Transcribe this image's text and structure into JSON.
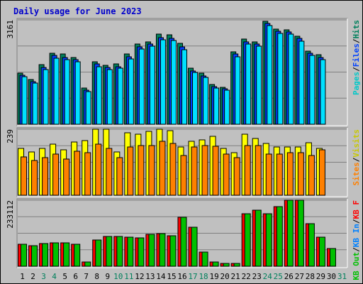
{
  "chart_data": {
    "type": "bar",
    "title": "Daily usage for June 2023",
    "colors": {
      "hits": "#00805c",
      "files": "#0040ff",
      "pages": "#00e0ff",
      "visits": "#ffff00",
      "sites": "#ff8000",
      "kb_in": "#0080ff",
      "kb_out": "#00c000",
      "kb_f": "#ff0000",
      "legend_hits": "#00805c",
      "legend_files": "#0040ff",
      "legend_pages": "#00c8c8",
      "legend_visits": "#c8c800",
      "legend_sites": "#ff8000",
      "legend_kb_in": "#0080ff",
      "legend_kb_out": "#00c000",
      "legend_kb_f": "#ff0000",
      "background": "#c0c0c0",
      "weekend_day_label": "#00805c",
      "weekday_day_label": "#000000",
      "title": "#0000cc"
    },
    "days": [
      "1",
      "2",
      "3",
      "4",
      "5",
      "6",
      "7",
      "8",
      "9",
      "10",
      "11",
      "12",
      "13",
      "14",
      "15",
      "16",
      "17",
      "18",
      "19",
      "20",
      "21",
      "22",
      "23",
      "24",
      "25",
      "26",
      "27",
      "28",
      "29",
      "30",
      "31"
    ],
    "weekend_days": [
      "3",
      "4",
      "10",
      "11",
      "17",
      "18",
      "24",
      "25",
      "31"
    ],
    "panels": [
      {
        "id": "hits_files_pages",
        "ymax_label": "3161",
        "ymax": 3161,
        "legend": [
          {
            "label": "Hits",
            "color_key": "legend_hits"
          },
          {
            "label": "Files",
            "color_key": "legend_files"
          },
          {
            "label": "Pages",
            "color_key": "legend_pages"
          }
        ],
        "separators": [
          "/",
          "/"
        ],
        "series": [
          {
            "name": "Hits",
            "color_key": "hits",
            "values": [
              1550,
              1350,
              1800,
              2150,
              2120,
              2020,
              1100,
              1900,
              1790,
              1830,
              2120,
              2430,
              2500,
              2730,
              2700,
              2450,
              1690,
              1540,
              1200,
              1110,
              2200,
              2570,
              2500,
              3120,
              2880,
              2860,
              2670,
              2220,
              2100,
              0,
              0
            ]
          },
          {
            "name": "Files",
            "color_key": "files",
            "values": [
              1480,
              1290,
              1720,
              2080,
              2030,
              1950,
              1040,
              1820,
              1710,
              1750,
              2040,
              2350,
              2430,
              2630,
              2600,
              2350,
              1620,
              1470,
              1150,
              1070,
              2130,
              2500,
              2430,
              3050,
              2820,
              2790,
              2600,
              2150,
              2020,
              0,
              0
            ]
          },
          {
            "name": "Pages",
            "color_key": "pages",
            "values": [
              1440,
              1250,
              1660,
              2010,
              1960,
              1890,
              980,
              1750,
              1650,
              1690,
              1980,
              2280,
              2360,
              2560,
              2540,
              2260,
              1560,
              1420,
              1090,
              1030,
              2050,
              2420,
              2360,
              2990,
              2760,
              2730,
              2520,
              2090,
              1950,
              0,
              0
            ]
          }
        ]
      },
      {
        "id": "visits_sites",
        "ymax_label": "239",
        "ymax": 239,
        "legend": [
          {
            "label": "Visits",
            "color_key": "legend_visits"
          },
          {
            "label": "Sites",
            "color_key": "legend_sites"
          }
        ],
        "separators": [
          "/"
        ],
        "series": [
          {
            "name": "Visits",
            "color_key": "visits",
            "values": [
              170,
              157,
              170,
              185,
              165,
              193,
              197,
              240,
              238,
              157,
              225,
              220,
              232,
              238,
              235,
              175,
              195,
              200,
              213,
              170,
              153,
              220,
              205,
              188,
              176,
              175,
              175,
              190,
              170,
              0,
              0
            ]
          },
          {
            "name": "Sites",
            "color_key": "sites",
            "values": [
              140,
              125,
              135,
              150,
              130,
              160,
              153,
              185,
              170,
              135,
              175,
              180,
              180,
              195,
              188,
              144,
              175,
              180,
              177,
              150,
              135,
              180,
              180,
              150,
              150,
              155,
              155,
              145,
              165,
              0,
              0
            ]
          }
        ]
      },
      {
        "id": "kbf_kbin_kbout",
        "ymax_label": "233112",
        "ymax": 233112,
        "legend": [
          {
            "label": "KB F",
            "color_key": "legend_kb_f"
          },
          {
            "label": "KB In",
            "color_key": "legend_kb_in"
          },
          {
            "label": "KB Out",
            "color_key": "legend_kb_out"
          }
        ],
        "separators": [
          "/",
          "/"
        ],
        "series": [
          {
            "name": "KB F",
            "color_key": "kb_f",
            "values": [
              78000,
              73000,
              80000,
              83000,
              83000,
              78000,
              15000,
              92000,
              105000,
              105000,
              103000,
              100000,
              113000,
              116000,
              109000,
              173000,
              138000,
              50000,
              15000,
              10000,
              9000,
              186000,
              198000,
              186000,
              210000,
              232000,
              232000,
              150000,
              103000,
              62000,
              0
            ]
          },
          {
            "name": "KB Out",
            "color_key": "kb_out",
            "values": [
              78000,
              73000,
              80000,
              83000,
              83000,
              78000,
              15000,
              92000,
              105000,
              105000,
              103000,
              100000,
              113000,
              116000,
              109000,
              173000,
              138000,
              50000,
              15000,
              10000,
              9000,
              186000,
              198000,
              186000,
              210000,
              232000,
              232000,
              150000,
              103000,
              62000,
              0
            ]
          }
        ]
      }
    ]
  }
}
